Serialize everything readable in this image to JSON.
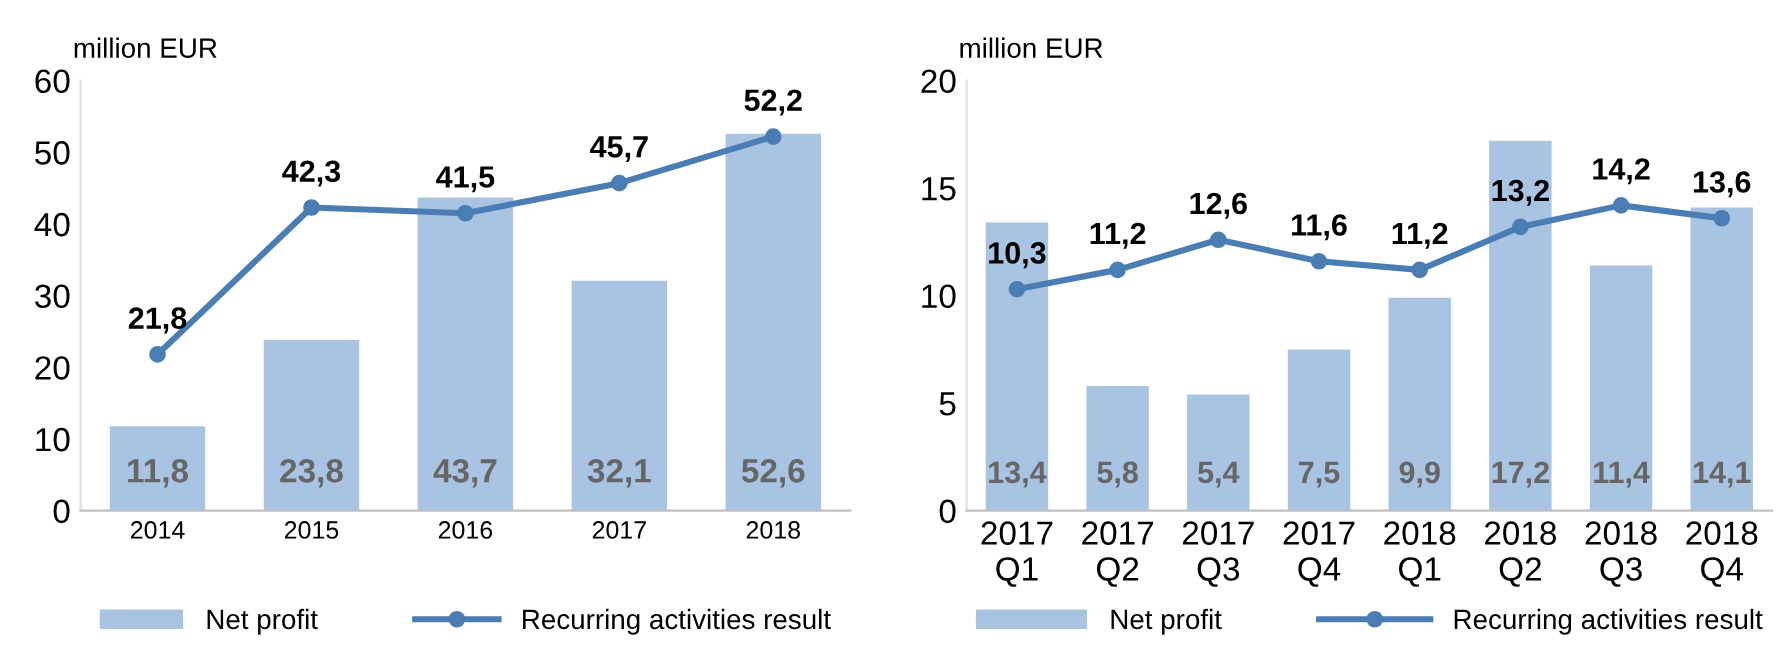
{
  "chart_data": [
    {
      "type": "bar",
      "ylabel": "million EUR",
      "categories": [
        "2014",
        "2015",
        "2016",
        "2017",
        "2018"
      ],
      "ylim": [
        0,
        60
      ],
      "yticks": [
        0,
        10,
        20,
        30,
        40,
        50,
        60
      ],
      "grid": false,
      "legend": "bottom",
      "series": [
        {
          "name": "Net profit",
          "color": "#a9c3e3",
          "values": [
            11.8,
            23.8,
            43.7,
            32.1,
            52.6
          ],
          "value_labels": [
            "11,8",
            "23,8",
            "43,7",
            "32,1",
            "52,6"
          ]
        },
        {
          "name": "Recurring activities result",
          "type": "line",
          "color": "#4a7db3",
          "marker": "circle",
          "values": [
            21.8,
            42.3,
            41.5,
            45.7,
            52.2
          ],
          "value_labels": [
            "21,8",
            "42,3",
            "41,5",
            "45,7",
            "52,2"
          ]
        }
      ]
    },
    {
      "type": "bar",
      "ylabel": "million EUR",
      "categories": [
        "2017\nQ1",
        "2017\nQ2",
        "2017\nQ3",
        "2017\nQ4",
        "2018\nQ1",
        "2018\nQ2",
        "2018\nQ3",
        "2018\nQ4"
      ],
      "ylim": [
        0,
        20
      ],
      "yticks": [
        0,
        5,
        10,
        15,
        20
      ],
      "grid": false,
      "legend": "bottom",
      "series": [
        {
          "name": "Net profit",
          "color": "#a9c3e3",
          "values": [
            13.4,
            5.8,
            5.4,
            7.5,
            9.9,
            17.2,
            11.4,
            14.1
          ],
          "value_labels": [
            "13,4",
            "5,8",
            "5,4",
            "7,5",
            "9,9",
            "17,2",
            "11,4",
            "14,1"
          ]
        },
        {
          "name": "Recurring activities result",
          "type": "line",
          "color": "#4a7db3",
          "marker": "circle",
          "values": [
            10.3,
            11.2,
            12.6,
            11.6,
            11.2,
            13.2,
            14.2,
            13.6
          ],
          "value_labels": [
            "10,3",
            "11,2",
            "12,6",
            "11,6",
            "11,2",
            "13,2",
            "14,2",
            "13,6"
          ]
        }
      ]
    }
  ]
}
